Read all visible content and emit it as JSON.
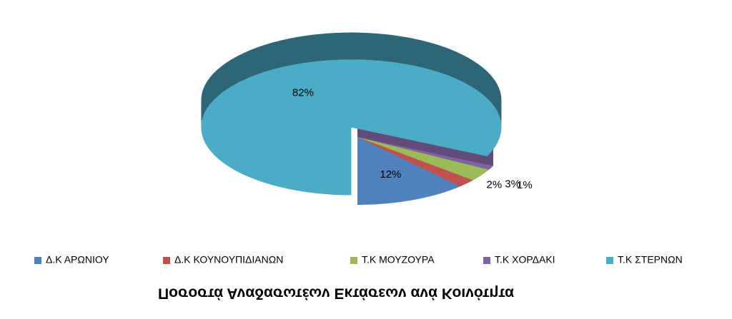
{
  "chart_data": {
    "type": "pie3d",
    "title": "Ποσοστά Αναδασωτέων Εκτάσεων ανά Κοινότητα",
    "categories": [
      "Δ.Κ ΑΡΩΝΙΟΥ",
      "Δ.Κ ΚΟΥΝΟΥΠΙΔΙΑΝΩΝ",
      "Τ.Κ ΜΟΥΖΟΥΡΑ",
      "Τ.Κ ΧΟΡΔΑΚΙ",
      "Τ.Κ ΣΤΕΡΝΩΝ"
    ],
    "values": [
      12,
      2,
      3,
      1,
      82
    ],
    "value_labels": [
      "12%",
      "2%",
      "3%",
      "1%",
      "82%"
    ],
    "colors": [
      "#4f81bd",
      "#c0504d",
      "#9bbb59",
      "#8064a2",
      "#4bacc6"
    ],
    "legend": "bottom"
  }
}
